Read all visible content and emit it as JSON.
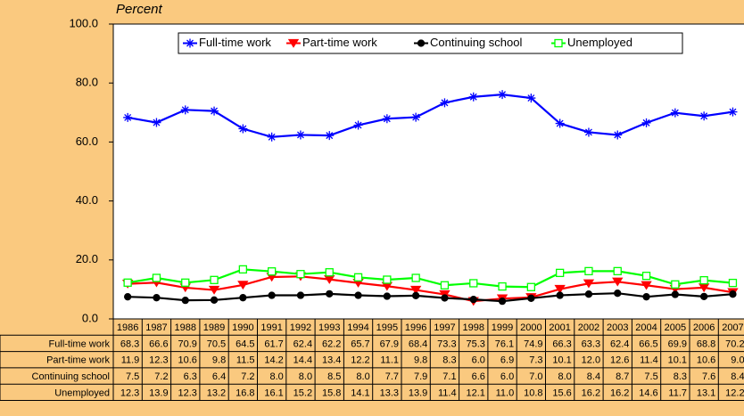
{
  "chart_data": {
    "type": "line",
    "y_label": "Percent",
    "categories": [
      "1986",
      "1987",
      "1988",
      "1989",
      "1990",
      "1991",
      "1992",
      "1993",
      "1994",
      "1995",
      "1996",
      "1997",
      "1998",
      "1999",
      "2000",
      "2001",
      "2002",
      "2003",
      "2004",
      "2005",
      "2006",
      "2007"
    ],
    "ylim": [
      0,
      100
    ],
    "yticks": [
      {
        "value": 0,
        "label": "0.0"
      },
      {
        "value": 20,
        "label": "20.0"
      },
      {
        "value": 40,
        "label": "40.0"
      },
      {
        "value": 60,
        "label": "60.0"
      },
      {
        "value": 80,
        "label": "80.0"
      },
      {
        "value": 100,
        "label": "100.0"
      }
    ],
    "legend": "top",
    "series": [
      {
        "name": "Full-time work",
        "color": "#0000ff",
        "marker": "star",
        "values": [
          68.3,
          66.6,
          70.9,
          70.5,
          64.5,
          61.7,
          62.4,
          62.2,
          65.7,
          67.9,
          68.4,
          73.3,
          75.3,
          76.1,
          74.9,
          66.3,
          63.3,
          62.4,
          66.5,
          69.9,
          68.8,
          70.2
        ]
      },
      {
        "name": "Part-time work",
        "color": "#ff0000",
        "marker": "triangle",
        "values": [
          11.9,
          12.3,
          10.6,
          9.8,
          11.5,
          14.2,
          14.4,
          13.4,
          12.2,
          11.1,
          9.8,
          8.3,
          6,
          6.9,
          7.3,
          10.1,
          12,
          12.6,
          11.4,
          10.1,
          10.6,
          9
        ],
        "value_labels": [
          "11.9",
          "12.3",
          "10.6",
          "9.8",
          "11.5",
          "14.2",
          "14.4",
          "13.4",
          "12.2",
          "11.1",
          "9.8",
          "8.3",
          "6.0",
          "6.9",
          "7.3",
          "10.1",
          "12.0",
          "12.6",
          "11.4",
          "10.1",
          "10.6",
          "9.0"
        ]
      },
      {
        "name": "Continuing school",
        "color": "#000000",
        "marker": "circle",
        "values": [
          7.5,
          7.2,
          6.3,
          6.4,
          7.2,
          8,
          8,
          8.5,
          8,
          7.7,
          7.9,
          7.1,
          6.6,
          6,
          7,
          8,
          8.4,
          8.7,
          7.5,
          8.3,
          7.6,
          8.4
        ],
        "value_labels": [
          "7.5",
          "7.2",
          "6.3",
          "6.4",
          "7.2",
          "8.0",
          "8.0",
          "8.5",
          "8.0",
          "7.7",
          "7.9",
          "7.1",
          "6.6",
          "6.0",
          "7.0",
          "8.0",
          "8.4",
          "8.7",
          "7.5",
          "8.3",
          "7.6",
          "8.4"
        ]
      },
      {
        "name": "Unemployed",
        "color": "#00ff00",
        "marker": "square",
        "values": [
          12.3,
          13.9,
          12.3,
          13.2,
          16.8,
          16.1,
          15.2,
          15.8,
          14.1,
          13.3,
          13.9,
          11.4,
          12.1,
          11,
          10.8,
          15.6,
          16.2,
          16.2,
          14.6,
          11.7,
          13.1,
          12.2
        ],
        "value_labels": [
          "12.3",
          "13.9",
          "12.3",
          "13.2",
          "16.8",
          "16.1",
          "15.2",
          "15.8",
          "14.1",
          "13.3",
          "13.9",
          "11.4",
          "12.1",
          "11.0",
          "10.8",
          "15.6",
          "16.2",
          "16.2",
          "14.6",
          "11.7",
          "13.1",
          "12.2"
        ]
      }
    ]
  }
}
